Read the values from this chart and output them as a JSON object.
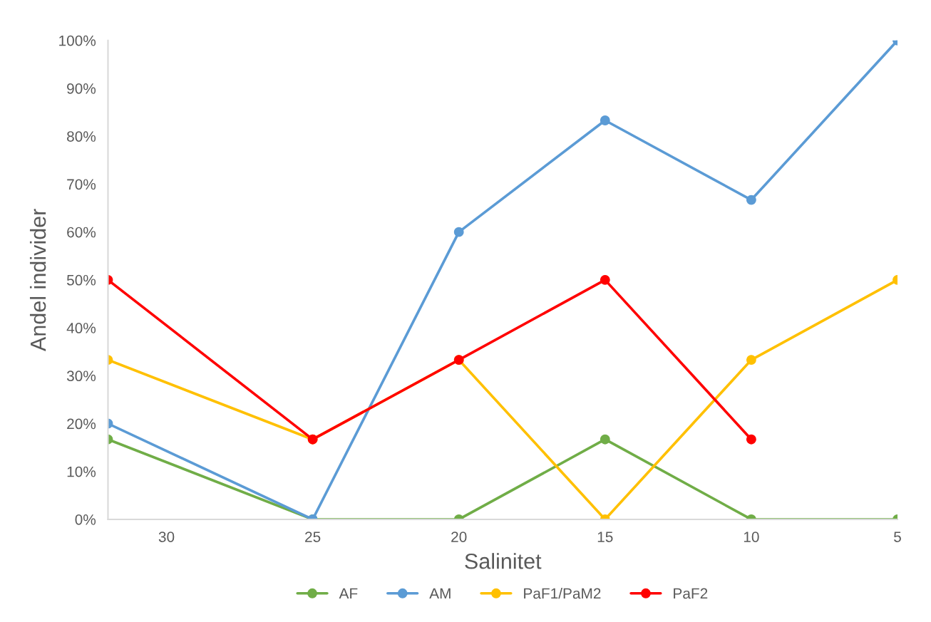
{
  "chart_data": {
    "type": "line",
    "xlabel": "Salinitet",
    "ylabel": "Andel individer",
    "x": [
      32,
      25,
      20,
      15,
      10,
      5
    ],
    "xlim": [
      32,
      5
    ],
    "xticks": [
      30,
      25,
      20,
      15,
      10,
      5
    ],
    "ylim": [
      0,
      100
    ],
    "yticks": [
      {
        "value": 0,
        "label": "0%"
      },
      {
        "value": 10,
        "label": "10%"
      },
      {
        "value": 20,
        "label": "20%"
      },
      {
        "value": 30,
        "label": "30%"
      },
      {
        "value": 40,
        "label": "40%"
      },
      {
        "value": 50,
        "label": "50%"
      },
      {
        "value": 60,
        "label": "60%"
      },
      {
        "value": 70,
        "label": "70%"
      },
      {
        "value": 80,
        "label": "80%"
      },
      {
        "value": 90,
        "label": "90%"
      },
      {
        "value": 100,
        "label": "100%"
      }
    ],
    "series": [
      {
        "name": "AF",
        "color": "#70ad47",
        "values": [
          16.7,
          0,
          0,
          16.7,
          0,
          0
        ]
      },
      {
        "name": "AM",
        "color": "#5b9bd5",
        "values": [
          20,
          0,
          60,
          83.3,
          66.7,
          100
        ]
      },
      {
        "name": "PaF1/PaM2",
        "color": "#ffc000",
        "values": [
          33.3,
          16.7,
          33.3,
          0,
          33.3,
          50
        ]
      },
      {
        "name": "PaF2",
        "color": "#ff0000",
        "values": [
          50,
          16.7,
          33.3,
          50,
          16.7,
          null
        ]
      }
    ],
    "marker": "circle",
    "line_style": "solid",
    "grid": false,
    "legend": "bottom"
  }
}
